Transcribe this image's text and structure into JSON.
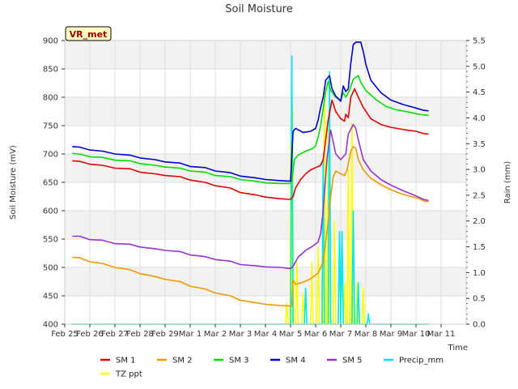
{
  "chart_data": {
    "type": "line",
    "title": "Soil Moisture",
    "xlabel": "Time",
    "ylabel": "Soil Moisture (mV)",
    "y2label": "Rain (mm)",
    "annotation": "VR_met",
    "x_ticks": [
      "Feb 25",
      "Feb 26",
      "Feb 27",
      "Feb 28",
      "Feb 29",
      "Mar 1",
      "Mar 2",
      "Mar 3",
      "Mar 4",
      "Mar 5",
      "Mar 6",
      "Mar 7",
      "Mar 8",
      "Mar 9",
      "Mar 10",
      "Mar 11"
    ],
    "y_ticks": [
      400,
      450,
      500,
      550,
      600,
      650,
      700,
      750,
      800,
      850,
      900
    ],
    "y2_ticks": [
      "0.0",
      "0.5",
      "1.0",
      "1.5",
      "2.0",
      "2.5",
      "3.0",
      "3.5",
      "4.0",
      "4.5",
      "5.0",
      "5.5"
    ],
    "xlim": [
      0,
      16
    ],
    "ylim": [
      400,
      900
    ],
    "y2lim": [
      0,
      5.5
    ],
    "grid": true,
    "legend_position": "bottom",
    "series": [
      {
        "name": "SM 1",
        "color": "#dd0000",
        "axis": "left",
        "points": [
          [
            0.3,
            688
          ],
          [
            0.6,
            687
          ],
          [
            1.0,
            682
          ],
          [
            1.5,
            680
          ],
          [
            2.0,
            675
          ],
          [
            2.6,
            674
          ],
          [
            3.0,
            668
          ],
          [
            3.6,
            665
          ],
          [
            4.0,
            662
          ],
          [
            4.6,
            660
          ],
          [
            5.0,
            654
          ],
          [
            5.6,
            650
          ],
          [
            6.0,
            644
          ],
          [
            6.6,
            640
          ],
          [
            7.0,
            632
          ],
          [
            7.6,
            628
          ],
          [
            8.0,
            624
          ],
          [
            8.6,
            621
          ],
          [
            9.0,
            620
          ],
          [
            9.1,
            625
          ],
          [
            9.2,
            640
          ],
          [
            9.4,
            655
          ],
          [
            9.6,
            665
          ],
          [
            9.8,
            672
          ],
          [
            10.0,
            676
          ],
          [
            10.2,
            680
          ],
          [
            10.3,
            690
          ],
          [
            10.5,
            760
          ],
          [
            10.65,
            795
          ],
          [
            10.8,
            775
          ],
          [
            11.0,
            762
          ],
          [
            11.15,
            758
          ],
          [
            11.2,
            770
          ],
          [
            11.3,
            764
          ],
          [
            11.4,
            800
          ],
          [
            11.55,
            815
          ],
          [
            11.7,
            800
          ],
          [
            11.9,
            782
          ],
          [
            12.2,
            762
          ],
          [
            12.6,
            752
          ],
          [
            13.0,
            747
          ],
          [
            13.5,
            743
          ],
          [
            14.0,
            740
          ],
          [
            14.3,
            736
          ],
          [
            14.5,
            735
          ]
        ]
      },
      {
        "name": "SM 2",
        "color": "#ee9900",
        "axis": "left",
        "points": [
          [
            0.3,
            518
          ],
          [
            0.6,
            517
          ],
          [
            1.0,
            510
          ],
          [
            1.5,
            507
          ],
          [
            2.0,
            500
          ],
          [
            2.6,
            496
          ],
          [
            3.0,
            489
          ],
          [
            3.6,
            484
          ],
          [
            4.0,
            479
          ],
          [
            4.6,
            475
          ],
          [
            5.0,
            467
          ],
          [
            5.6,
            462
          ],
          [
            6.0,
            455
          ],
          [
            6.6,
            450
          ],
          [
            7.0,
            442
          ],
          [
            7.6,
            438
          ],
          [
            8.0,
            435
          ],
          [
            8.6,
            433
          ],
          [
            9.0,
            432
          ],
          [
            9.05,
            432
          ],
          [
            9.1,
            478
          ],
          [
            9.2,
            470
          ],
          [
            9.5,
            474
          ],
          [
            9.8,
            480
          ],
          [
            10.1,
            490
          ],
          [
            10.3,
            510
          ],
          [
            10.5,
            580
          ],
          [
            10.6,
            625
          ],
          [
            10.7,
            660
          ],
          [
            10.8,
            670
          ],
          [
            11.0,
            665
          ],
          [
            11.15,
            662
          ],
          [
            11.25,
            672
          ],
          [
            11.4,
            705
          ],
          [
            11.5,
            713
          ],
          [
            11.6,
            710
          ],
          [
            11.7,
            690
          ],
          [
            11.9,
            672
          ],
          [
            12.2,
            657
          ],
          [
            12.6,
            646
          ],
          [
            13.0,
            637
          ],
          [
            13.4,
            630
          ],
          [
            13.8,
            625
          ],
          [
            14.1,
            622
          ],
          [
            14.3,
            617
          ],
          [
            14.5,
            616
          ]
        ]
      },
      {
        "name": "SM 3",
        "color": "#00dd00",
        "axis": "left",
        "points": [
          [
            0.3,
            701
          ],
          [
            0.6,
            700
          ],
          [
            1.0,
            695
          ],
          [
            1.5,
            694
          ],
          [
            2.0,
            689
          ],
          [
            2.6,
            688
          ],
          [
            3.0,
            683
          ],
          [
            3.6,
            680
          ],
          [
            4.0,
            677
          ],
          [
            4.6,
            675
          ],
          [
            5.0,
            670
          ],
          [
            5.6,
            668
          ],
          [
            6.0,
            662
          ],
          [
            6.6,
            660
          ],
          [
            7.0,
            655
          ],
          [
            7.6,
            652
          ],
          [
            8.0,
            649
          ],
          [
            8.6,
            648
          ],
          [
            9.0,
            648
          ],
          [
            9.05,
            652
          ],
          [
            9.15,
            690
          ],
          [
            9.3,
            698
          ],
          [
            9.6,
            705
          ],
          [
            9.9,
            710
          ],
          [
            10.0,
            715
          ],
          [
            10.1,
            730
          ],
          [
            10.2,
            750
          ],
          [
            10.3,
            780
          ],
          [
            10.4,
            810
          ],
          [
            10.5,
            828
          ],
          [
            10.6,
            812
          ],
          [
            10.8,
            800
          ],
          [
            11.0,
            795
          ],
          [
            11.1,
            808
          ],
          [
            11.2,
            800
          ],
          [
            11.35,
            812
          ],
          [
            11.5,
            832
          ],
          [
            11.7,
            838
          ],
          [
            11.8,
            826
          ],
          [
            12.0,
            812
          ],
          [
            12.4,
            796
          ],
          [
            12.8,
            784
          ],
          [
            13.2,
            778
          ],
          [
            13.7,
            774
          ],
          [
            14.1,
            770
          ],
          [
            14.5,
            768
          ]
        ]
      },
      {
        "name": "SM 4",
        "color": "#0000cc",
        "axis": "left",
        "points": [
          [
            0.3,
            713
          ],
          [
            0.6,
            712
          ],
          [
            1.0,
            707
          ],
          [
            1.5,
            705
          ],
          [
            2.0,
            700
          ],
          [
            2.6,
            698
          ],
          [
            3.0,
            693
          ],
          [
            3.6,
            690
          ],
          [
            4.0,
            686
          ],
          [
            4.6,
            684
          ],
          [
            5.0,
            678
          ],
          [
            5.6,
            676
          ],
          [
            6.0,
            670
          ],
          [
            6.6,
            667
          ],
          [
            7.0,
            661
          ],
          [
            7.6,
            658
          ],
          [
            8.0,
            655
          ],
          [
            8.6,
            653
          ],
          [
            9.0,
            652
          ],
          [
            9.1,
            740
          ],
          [
            9.2,
            745
          ],
          [
            9.5,
            738
          ],
          [
            9.8,
            740
          ],
          [
            10.0,
            745
          ],
          [
            10.1,
            760
          ],
          [
            10.2,
            782
          ],
          [
            10.3,
            800
          ],
          [
            10.4,
            830
          ],
          [
            10.55,
            838
          ],
          [
            10.65,
            815
          ],
          [
            10.8,
            802
          ],
          [
            11.0,
            793
          ],
          [
            11.1,
            820
          ],
          [
            11.2,
            810
          ],
          [
            11.3,
            815
          ],
          [
            11.4,
            860
          ],
          [
            11.5,
            893
          ],
          [
            11.6,
            897
          ],
          [
            11.8,
            897
          ],
          [
            11.9,
            880
          ],
          [
            12.0,
            858
          ],
          [
            12.2,
            830
          ],
          [
            12.6,
            808
          ],
          [
            13.0,
            795
          ],
          [
            13.5,
            787
          ],
          [
            14.0,
            781
          ],
          [
            14.3,
            777
          ],
          [
            14.5,
            776
          ]
        ]
      },
      {
        "name": "SM 5",
        "color": "#9933cc",
        "axis": "left",
        "points": [
          [
            0.3,
            555
          ],
          [
            0.6,
            555
          ],
          [
            1.0,
            549
          ],
          [
            1.5,
            548
          ],
          [
            2.0,
            542
          ],
          [
            2.6,
            541
          ],
          [
            3.0,
            536
          ],
          [
            3.6,
            533
          ],
          [
            4.0,
            530
          ],
          [
            4.6,
            528
          ],
          [
            5.0,
            522
          ],
          [
            5.6,
            519
          ],
          [
            6.0,
            514
          ],
          [
            6.6,
            511
          ],
          [
            7.0,
            505
          ],
          [
            7.6,
            503
          ],
          [
            8.0,
            501
          ],
          [
            8.6,
            500
          ],
          [
            9.0,
            498
          ],
          [
            9.1,
            502
          ],
          [
            9.3,
            518
          ],
          [
            9.6,
            530
          ],
          [
            9.9,
            538
          ],
          [
            10.1,
            545
          ],
          [
            10.2,
            560
          ],
          [
            10.3,
            600
          ],
          [
            10.45,
            690
          ],
          [
            10.6,
            742
          ],
          [
            10.8,
            700
          ],
          [
            11.0,
            690
          ],
          [
            11.2,
            700
          ],
          [
            11.3,
            735
          ],
          [
            11.5,
            752
          ],
          [
            11.6,
            745
          ],
          [
            11.7,
            725
          ],
          [
            11.9,
            690
          ],
          [
            12.2,
            670
          ],
          [
            12.6,
            655
          ],
          [
            13.0,
            645
          ],
          [
            13.5,
            635
          ],
          [
            14.0,
            626
          ],
          [
            14.3,
            620
          ],
          [
            14.5,
            618
          ]
        ]
      },
      {
        "name": "Precip_mm",
        "color": "#00e5ee",
        "axis": "right",
        "points": [
          [
            0.3,
            0
          ],
          [
            9.0,
            0
          ],
          [
            9.05,
            5.2
          ],
          [
            9.1,
            0
          ],
          [
            9.55,
            0
          ],
          [
            9.6,
            0.7
          ],
          [
            9.65,
            0
          ],
          [
            10.25,
            0
          ],
          [
            10.3,
            3.2
          ],
          [
            10.35,
            0
          ],
          [
            10.5,
            0
          ],
          [
            10.55,
            4.9
          ],
          [
            10.6,
            0
          ],
          [
            10.9,
            0
          ],
          [
            10.95,
            1.8
          ],
          [
            11.0,
            0
          ],
          [
            11.05,
            1.8
          ],
          [
            11.1,
            0
          ],
          [
            11.45,
            0
          ],
          [
            11.5,
            2.2
          ],
          [
            11.55,
            0
          ],
          [
            11.65,
            0
          ],
          [
            11.7,
            0.8
          ],
          [
            11.75,
            0
          ],
          [
            12.05,
            0
          ],
          [
            12.1,
            0.2
          ],
          [
            12.15,
            0
          ],
          [
            14.5,
            0
          ]
        ]
      },
      {
        "name": "TZ ppt",
        "color": "#ffff00",
        "axis": "right",
        "points": [
          [
            0.3,
            0
          ],
          [
            8.8,
            0
          ],
          [
            8.85,
            0.4
          ],
          [
            8.9,
            0
          ],
          [
            8.98,
            0
          ],
          [
            9.0,
            3.5
          ],
          [
            9.05,
            0
          ],
          [
            9.08,
            4.2
          ],
          [
            9.12,
            0
          ],
          [
            9.2,
            0
          ],
          [
            9.25,
            1.2
          ],
          [
            9.3,
            0
          ],
          [
            9.45,
            0
          ],
          [
            9.5,
            0.6
          ],
          [
            9.55,
            0
          ],
          [
            9.8,
            0
          ],
          [
            9.85,
            1.2
          ],
          [
            9.9,
            0
          ],
          [
            10.05,
            0
          ],
          [
            10.1,
            1.5
          ],
          [
            10.15,
            0
          ],
          [
            10.3,
            0
          ],
          [
            10.35,
            4.6
          ],
          [
            10.4,
            0
          ],
          [
            10.45,
            0
          ],
          [
            10.5,
            3.8
          ],
          [
            10.55,
            0
          ],
          [
            10.7,
            0
          ],
          [
            10.75,
            2.0
          ],
          [
            10.8,
            0
          ],
          [
            10.9,
            0
          ],
          [
            10.95,
            1.6
          ],
          [
            11.0,
            0
          ],
          [
            11.1,
            0
          ],
          [
            11.15,
            0.8
          ],
          [
            11.2,
            0
          ],
          [
            11.25,
            0
          ],
          [
            11.3,
            3.0
          ],
          [
            11.35,
            0
          ],
          [
            11.4,
            0
          ],
          [
            11.45,
            3.9
          ],
          [
            11.5,
            0
          ],
          [
            11.6,
            0
          ],
          [
            11.65,
            0.8
          ],
          [
            11.7,
            0
          ],
          [
            11.85,
            0
          ],
          [
            11.9,
            0.7
          ],
          [
            11.95,
            0
          ],
          [
            14.5,
            0
          ]
        ]
      }
    ]
  }
}
